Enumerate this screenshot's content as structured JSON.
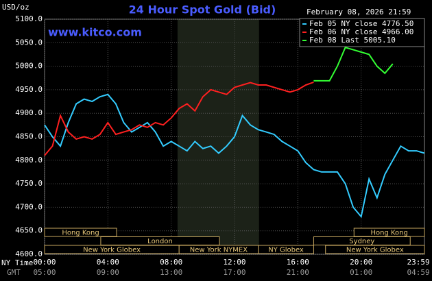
{
  "chart_data": {
    "type": "line",
    "title": "24 Hour Spot Gold (Bid)",
    "unit_label": "USD/oz",
    "timestamp": "February 08, 2026 21:59",
    "watermark": "www.kitco.com",
    "x_row_labels": [
      "NY Time",
      "GMT"
    ],
    "x": [
      0,
      0.5,
      1,
      1.5,
      2,
      2.5,
      3,
      3.5,
      4,
      4.5,
      5,
      5.5,
      6,
      6.5,
      7,
      7.5,
      8,
      8.5,
      9,
      9.5,
      10,
      10.5,
      11,
      11.5,
      12,
      12.5,
      13,
      13.5,
      14,
      14.5,
      15,
      15.5,
      16,
      16.5,
      17,
      17.5,
      18,
      18.5,
      19,
      19.5,
      20,
      20.5,
      21,
      21.5,
      22,
      22.5,
      23,
      23.5,
      24
    ],
    "series": [
      {
        "name": "Feb 05 NY close 4776.50",
        "color": "#33ccff",
        "values": [
          4875,
          4850,
          4830,
          4880,
          4920,
          4930,
          4925,
          4935,
          4940,
          4920,
          4880,
          4860,
          4870,
          4880,
          4860,
          4830,
          4840,
          4830,
          4820,
          4840,
          4825,
          4830,
          4815,
          4830,
          4850,
          4895,
          4875,
          4865,
          4860,
          4855,
          4840,
          4830,
          4820,
          4795,
          4780,
          4775,
          4775,
          4775,
          4750,
          4700,
          4680,
          4760,
          4720,
          4770,
          4800,
          4830,
          4820,
          4820,
          4815
        ]
      },
      {
        "name": "Feb 06 NY close 4966.00",
        "color": "#ff2020",
        "values": [
          4810,
          4830,
          4895,
          4860,
          4845,
          4850,
          4845,
          4855,
          4880,
          4855,
          4860,
          4865,
          4875,
          4870,
          4880,
          4875,
          4890,
          4910,
          4920,
          4905,
          4935,
          4950,
          4945,
          4940,
          4955,
          4960,
          4965,
          4960,
          4960,
          4955,
          4950,
          4945,
          4950,
          4960,
          4966,
          null,
          null,
          null,
          null,
          null,
          null,
          null,
          null,
          null,
          null,
          null,
          null,
          null,
          null
        ]
      },
      {
        "name": "Feb 08 Last 5005.10",
        "color": "#33ff33",
        "values": [
          null,
          null,
          null,
          null,
          null,
          null,
          null,
          null,
          null,
          null,
          null,
          null,
          null,
          null,
          null,
          null,
          null,
          null,
          null,
          null,
          null,
          null,
          null,
          null,
          null,
          null,
          null,
          null,
          null,
          null,
          null,
          null,
          null,
          null,
          4969,
          4969,
          4969,
          5000,
          5040,
          5035,
          5030,
          5025,
          5000,
          4985,
          5005,
          null,
          null,
          null,
          null
        ]
      }
    ],
    "xlim": [
      0,
      24
    ],
    "xticks": [
      {
        "value": 0,
        "label": "00:00"
      },
      {
        "value": 4,
        "label": "04:00"
      },
      {
        "value": 8,
        "label": "08:00"
      },
      {
        "value": 12,
        "label": "12:00"
      },
      {
        "value": 16,
        "label": "16:00"
      },
      {
        "value": 20,
        "label": "20:00"
      },
      {
        "value": 23.983,
        "label": "23:59"
      }
    ],
    "xticks_gmt": [
      "05:00",
      "09:00",
      "13:00",
      "17:00",
      "21:00",
      "01:00",
      "04:59"
    ],
    "ylim": [
      4600,
      5100
    ],
    "yticks": [
      {
        "value": 4600,
        "label": "4600.0"
      },
      {
        "value": 4650,
        "label": "4650.0"
      },
      {
        "value": 4700,
        "label": "4700.0"
      },
      {
        "value": 4750,
        "label": "4750.0"
      },
      {
        "value": 4800,
        "label": "4800.0"
      },
      {
        "value": 4850,
        "label": "4850.0"
      },
      {
        "value": 4900,
        "label": "4900.0"
      },
      {
        "value": 4950,
        "label": "4950.0"
      },
      {
        "value": 5000,
        "label": "5000.0"
      },
      {
        "value": 5050,
        "label": "5050.0"
      },
      {
        "value": 5100,
        "label": "5100.0"
      }
    ],
    "grid": true,
    "highlight": [
      8.4,
      13.55
    ],
    "sessions": [
      {
        "name": "Hong Kong",
        "row": 1,
        "start": 0,
        "end": 4.55
      },
      {
        "name": "Hong Kong",
        "row": 1,
        "start": 19.55,
        "end": 24
      },
      {
        "name": "London",
        "row": 2,
        "start": 3.55,
        "end": 11.05
      },
      {
        "name": "Sydney",
        "row": 2,
        "start": 17,
        "end": 23.1
      },
      {
        "name": "New York Globex",
        "row": 3,
        "start": 0,
        "end": 8.5
      },
      {
        "name": "New York NYMEX",
        "row": 3,
        "start": 8.5,
        "end": 13.5
      },
      {
        "name": "NY Globex",
        "row": 3,
        "start": 13.5,
        "end": 17
      },
      {
        "name": "New York Globex",
        "row": 3,
        "start": 17.75,
        "end": 24
      }
    ]
  }
}
